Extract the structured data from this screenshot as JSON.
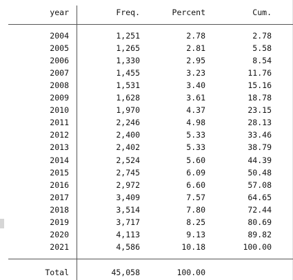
{
  "table": {
    "headers": {
      "year": "year",
      "freq": "Freq.",
      "percent": "Percent",
      "cum": "Cum."
    },
    "rows": [
      {
        "year": "2004",
        "freq": "1,251",
        "percent": "2.78",
        "cum": "2.78"
      },
      {
        "year": "2005",
        "freq": "1,265",
        "percent": "2.81",
        "cum": "5.58"
      },
      {
        "year": "2006",
        "freq": "1,330",
        "percent": "2.95",
        "cum": "8.54"
      },
      {
        "year": "2007",
        "freq": "1,455",
        "percent": "3.23",
        "cum": "11.76"
      },
      {
        "year": "2008",
        "freq": "1,531",
        "percent": "3.40",
        "cum": "15.16"
      },
      {
        "year": "2009",
        "freq": "1,628",
        "percent": "3.61",
        "cum": "18.78"
      },
      {
        "year": "2010",
        "freq": "1,970",
        "percent": "4.37",
        "cum": "23.15"
      },
      {
        "year": "2011",
        "freq": "2,246",
        "percent": "4.98",
        "cum": "28.13"
      },
      {
        "year": "2012",
        "freq": "2,400",
        "percent": "5.33",
        "cum": "33.46"
      },
      {
        "year": "2013",
        "freq": "2,402",
        "percent": "5.33",
        "cum": "38.79"
      },
      {
        "year": "2014",
        "freq": "2,524",
        "percent": "5.60",
        "cum": "44.39"
      },
      {
        "year": "2015",
        "freq": "2,745",
        "percent": "6.09",
        "cum": "50.48"
      },
      {
        "year": "2016",
        "freq": "2,972",
        "percent": "6.60",
        "cum": "57.08"
      },
      {
        "year": "2017",
        "freq": "3,409",
        "percent": "7.57",
        "cum": "64.65"
      },
      {
        "year": "2018",
        "freq": "3,514",
        "percent": "7.80",
        "cum": "72.44"
      },
      {
        "year": "2019",
        "freq": "3,717",
        "percent": "8.25",
        "cum": "80.69"
      },
      {
        "year": "2020",
        "freq": "4,113",
        "percent": "9.13",
        "cum": "89.82"
      },
      {
        "year": "2021",
        "freq": "4,586",
        "percent": "10.18",
        "cum": "100.00"
      }
    ],
    "total": {
      "label": "Total",
      "freq": "45,058",
      "percent": "100.00"
    }
  }
}
